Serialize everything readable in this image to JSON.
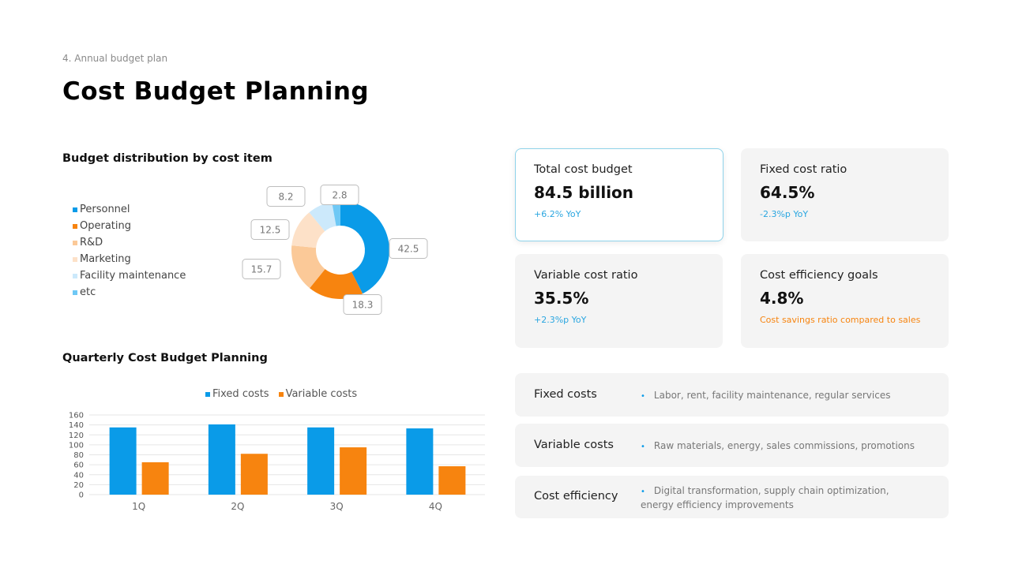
{
  "header": {
    "section": "4. Annual budget plan",
    "title": "Cost Budget Planning"
  },
  "donut": {
    "title": "Budget distribution by cost item",
    "legend": [
      {
        "label": "Personnel",
        "color": "#0a9be8"
      },
      {
        "label": "Operating",
        "color": "#f7840f"
      },
      {
        "label": "R&D",
        "color": "#fbc998"
      },
      {
        "label": "Marketing",
        "color": "#fde1c8"
      },
      {
        "label": "Facility maintenance",
        "color": "#cce9fb"
      },
      {
        "label": "etc",
        "color": "#6ec8f5"
      }
    ]
  },
  "bars": {
    "title": "Quarterly Cost Budget Planning",
    "legend": [
      {
        "label": "Fixed costs",
        "color": "#0a9be8"
      },
      {
        "label": "Variable costs",
        "color": "#f7840f"
      }
    ]
  },
  "chart_data": [
    {
      "type": "pie",
      "title": "Budget distribution by cost item",
      "categories": [
        "Personnel",
        "Operating",
        "R&D",
        "Marketing",
        "Facility maintenance",
        "etc"
      ],
      "values": [
        42.5,
        18.3,
        15.7,
        12.5,
        8.2,
        2.8
      ],
      "colors": [
        "#0a9be8",
        "#f7840f",
        "#fbc998",
        "#fde1c8",
        "#cce9fb",
        "#6ec8f5"
      ],
      "donut": true
    },
    {
      "type": "bar",
      "title": "Quarterly Cost Budget Planning",
      "categories": [
        "1Q",
        "2Q",
        "3Q",
        "4Q"
      ],
      "series": [
        {
          "name": "Fixed costs",
          "values": [
            135,
            141,
            135,
            133
          ],
          "color": "#0a9be8"
        },
        {
          "name": "Variable costs",
          "values": [
            65,
            82,
            95,
            57
          ],
          "color": "#f7840f"
        }
      ],
      "ylim": [
        0,
        160
      ],
      "yticks": [
        0,
        20,
        40,
        60,
        80,
        100,
        120,
        140,
        160
      ],
      "legend": "top",
      "grid": true
    }
  ],
  "cards": [
    {
      "title": "Total cost budget",
      "value": "84.5 billion",
      "note": "+6.2% YoY",
      "note_color": "#2aa6e0"
    },
    {
      "title": "Fixed cost ratio",
      "value": "64.5%",
      "note": "-2.3%p YoY",
      "note_color": "#2aa6e0"
    },
    {
      "title": "Variable cost ratio",
      "value": "35.5%",
      "note": "+2.3%p YoY",
      "note_color": "#2aa6e0"
    },
    {
      "title": "Cost efficiency goals",
      "value": "4.8%",
      "note": "Cost savings ratio compared to sales",
      "note_color": "#f7840f"
    }
  ],
  "descriptions": [
    {
      "label": "Fixed costs",
      "text": "Labor,  rent,  facility maintenance,   regular services"
    },
    {
      "label": "Variable costs",
      "text": "Raw materials,  energy,  sales commissions,   promotions"
    },
    {
      "label": "Cost efficiency",
      "text": "Digital transformation,   supply chain optimization,",
      "text2": "energy efficiency improvements"
    }
  ]
}
